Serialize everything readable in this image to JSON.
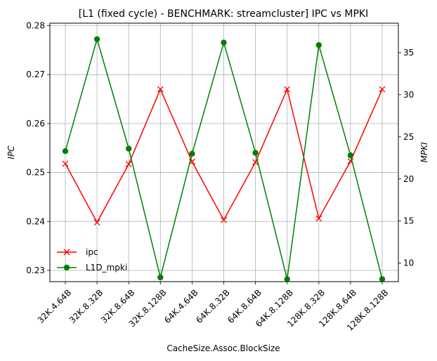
{
  "chart_data": {
    "type": "line",
    "title": "[L1 (fixed cycle) - BENCHMARK: streamcluster]  IPC vs MPKI",
    "xlabel": "CacheSize.Assoc.BlockSize",
    "ylabel_left": "IPC",
    "ylabel_right": "MPKI",
    "categories": [
      "32K.4.64B",
      "32K.8.32B",
      "32K.8.64B",
      "32K.8.128B",
      "64K.4.64B",
      "64K.8.32B",
      "64K.8.64B",
      "64K.8.128B",
      "128K.8.32B",
      "128K.8.64B",
      "128K.8.128B"
    ],
    "ylim_left": [
      0.2277,
      0.2805
    ],
    "yticks_left": [
      "0.23",
      "0.24",
      "0.25",
      "0.26",
      "0.27",
      "0.28"
    ],
    "ylim_right": [
      7.8,
      38.5
    ],
    "yticks_right": [
      "10",
      "15",
      "20",
      "25",
      "30",
      "35"
    ],
    "grid": true,
    "legend_position": "lower-left",
    "series": [
      {
        "name": "ipc",
        "axis": "left",
        "color": "#ff0000",
        "marker": "x",
        "values": [
          0.2518,
          0.2398,
          0.2517,
          0.267,
          0.2522,
          0.2403,
          0.2521,
          0.267,
          0.2406,
          0.2523,
          0.267
        ]
      },
      {
        "name": "L1D_mpki",
        "axis": "right",
        "color": "#008000",
        "marker": "o",
        "values": [
          23.3,
          36.6,
          23.6,
          8.3,
          23.0,
          36.2,
          23.1,
          8.1,
          35.9,
          22.8,
          8.1
        ]
      }
    ]
  }
}
